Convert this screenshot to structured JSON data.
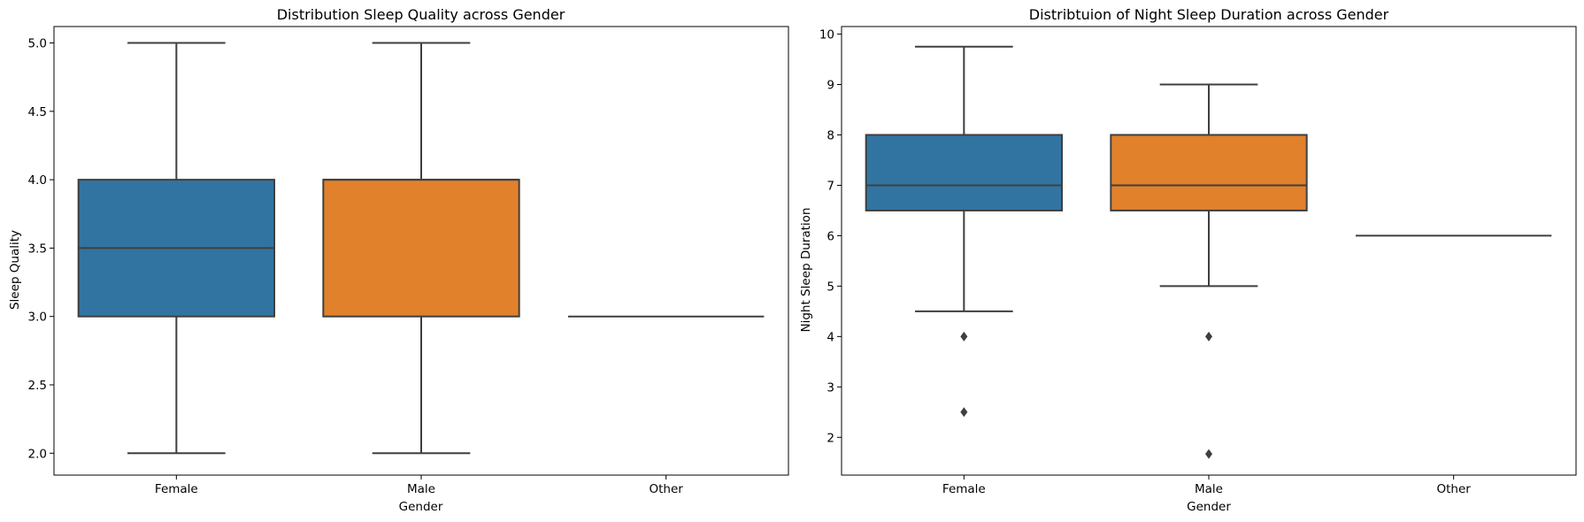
{
  "chart_data": [
    {
      "type": "boxplot",
      "title": "Distribution Sleep Quality across Gender",
      "xlabel": "Gender",
      "ylabel": "Sleep Quality",
      "categories": [
        "Female",
        "Male",
        "Other"
      ],
      "ylim": [
        1.84,
        5.12
      ],
      "yticks": [
        2.0,
        2.5,
        3.0,
        3.5,
        4.0,
        4.5,
        5.0
      ],
      "ytick_labels": [
        "2.0",
        "2.5",
        "3.0",
        "3.5",
        "4.0",
        "4.5",
        "5.0"
      ],
      "grid": false,
      "boxes": [
        {
          "category": "Female",
          "whisker_low": 2.0,
          "q1": 3.0,
          "median": 3.5,
          "q3": 4.0,
          "whisker_high": 5.0,
          "color": "#3274a1",
          "outliers": []
        },
        {
          "category": "Male",
          "whisker_low": 2.0,
          "q1": 3.0,
          "median": 4.0,
          "q3": 4.0,
          "whisker_high": 5.0,
          "color": "#e1812c",
          "outliers": []
        },
        {
          "category": "Other",
          "whisker_low": 3.0,
          "q1": 3.0,
          "median": 3.0,
          "q3": 3.0,
          "whisker_high": 3.0,
          "color": "#3a923a",
          "outliers": []
        }
      ]
    },
    {
      "type": "boxplot",
      "title": "Distribtuion of  Night Sleep Duration across Gender",
      "xlabel": "Gender",
      "ylabel": "Night Sleep Duration",
      "categories": [
        "Female",
        "Male",
        "Other"
      ],
      "ylim": [
        1.25,
        10.15
      ],
      "yticks": [
        2,
        3,
        4,
        5,
        6,
        7,
        8,
        9,
        10
      ],
      "ytick_labels": [
        "2",
        "3",
        "4",
        "5",
        "6",
        "7",
        "8",
        "9",
        "10"
      ],
      "grid": false,
      "boxes": [
        {
          "category": "Female",
          "whisker_low": 4.5,
          "q1": 6.5,
          "median": 7.0,
          "q3": 8.0,
          "whisker_high": 9.75,
          "color": "#3274a1",
          "outliers": [
            4.0,
            2.5
          ]
        },
        {
          "category": "Male",
          "whisker_low": 5.0,
          "q1": 6.5,
          "median": 7.0,
          "q3": 8.0,
          "whisker_high": 9.0,
          "color": "#e1812c",
          "outliers": [
            4.0,
            1.67
          ]
        },
        {
          "category": "Other",
          "whisker_low": 6.0,
          "q1": 6.0,
          "median": 6.0,
          "q3": 6.0,
          "whisker_high": 6.0,
          "color": "#3a923a",
          "outliers": []
        }
      ]
    }
  ]
}
